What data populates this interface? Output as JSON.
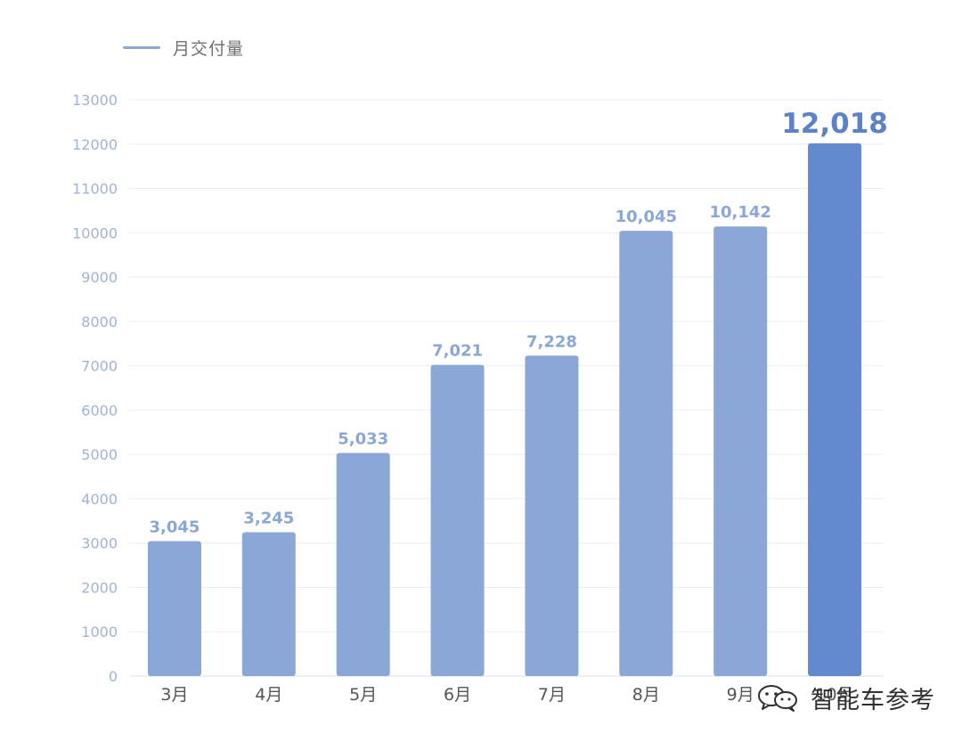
{
  "legend": {
    "label": "月交付量",
    "color": "#8aa7d8"
  },
  "watermark": {
    "text": "智能车参考",
    "icon": "wechat-icon"
  },
  "colors": {
    "bar": "#8aa7d8",
    "bar_highlight": "#6389cf",
    "value_label": "#8aa7d8",
    "value_label_highlight": "#5d82c8",
    "grid": "#e8edf5",
    "tick": "#9fb4d6",
    "category_label": "#555555"
  },
  "chart_data": {
    "type": "bar",
    "categories": [
      "3月",
      "4月",
      "5月",
      "6月",
      "7月",
      "8月",
      "9月",
      "10月"
    ],
    "values": [
      3045,
      3245,
      5033,
      7021,
      7228,
      10045,
      10142,
      12018
    ],
    "value_labels": [
      "3,045",
      "3,245",
      "5,033",
      "7,021",
      "7,228",
      "10,045",
      "10,142",
      "12,018"
    ],
    "highlight_index": 7,
    "ylim": [
      0,
      13000
    ],
    "yticks": [
      0,
      1000,
      2000,
      3000,
      4000,
      5000,
      6000,
      7000,
      8000,
      9000,
      10000,
      11000,
      12000,
      13000
    ],
    "grid": true,
    "legend_position": "top-left"
  }
}
